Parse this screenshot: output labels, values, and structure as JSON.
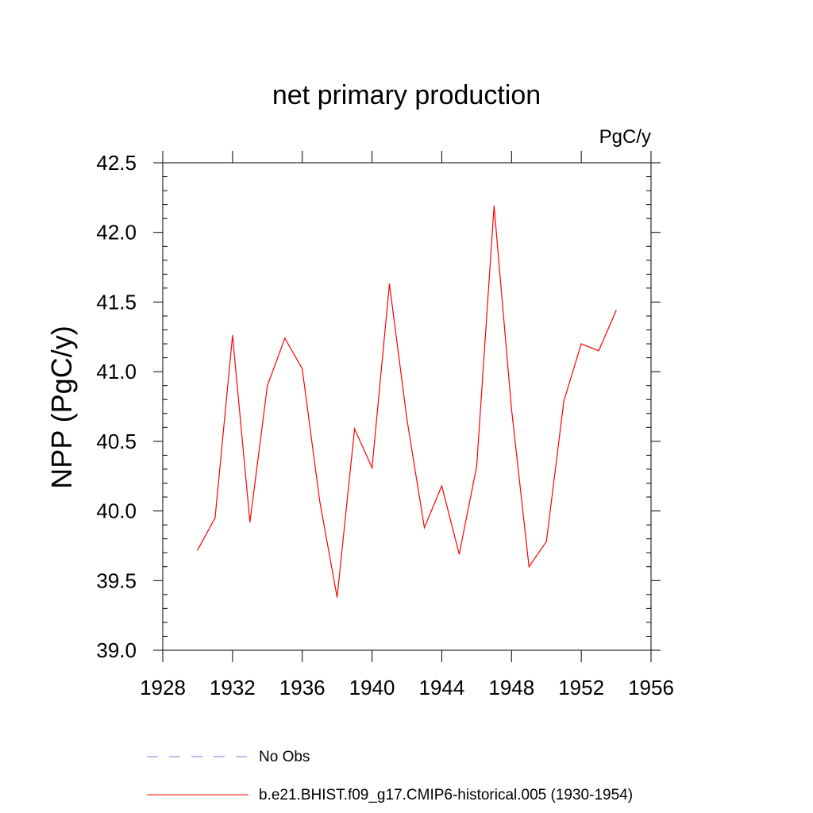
{
  "chart_data": {
    "type": "line",
    "title": "net primary production",
    "units_label": "PgC/y",
    "ylabel": "NPP  (PgC/y)",
    "xlabel": "",
    "xlim": [
      1928,
      1956
    ],
    "ylim": [
      39.0,
      42.5
    ],
    "x_ticks": [
      1928,
      1932,
      1936,
      1940,
      1944,
      1948,
      1952,
      1956
    ],
    "x_tick_labels": [
      "1928",
      "1932",
      "1936",
      "1940",
      "1944",
      "1948",
      "1952",
      "1956"
    ],
    "y_ticks": [
      39.0,
      39.5,
      40.0,
      40.5,
      41.0,
      41.5,
      42.0,
      42.5
    ],
    "y_tick_labels": [
      "39.0",
      "39.5",
      "40.0",
      "40.5",
      "41.0",
      "41.5",
      "42.0",
      "42.5"
    ],
    "grid": false,
    "legend_placement": "bottom",
    "series": [
      {
        "name": "b.e21.BHIST.f09_g17.CMIP6-historical.005 (1930-1954)",
        "color": "#ff0000",
        "style": "solid",
        "x": [
          1930,
          1931,
          1932,
          1933,
          1934,
          1935,
          1936,
          1937,
          1938,
          1939,
          1940,
          1941,
          1942,
          1943,
          1944,
          1945,
          1946,
          1947,
          1948,
          1949,
          1950,
          1951,
          1952,
          1953,
          1954
        ],
        "y": [
          39.72,
          39.95,
          41.26,
          39.92,
          40.9,
          41.24,
          41.02,
          40.07,
          39.38,
          40.59,
          40.31,
          41.63,
          40.66,
          39.88,
          40.18,
          39.69,
          40.32,
          42.19,
          40.73,
          39.6,
          39.78,
          40.79,
          41.2,
          41.15,
          41.44
        ]
      }
    ],
    "legend": [
      {
        "label": "No Obs",
        "color": "#7b7bd6",
        "style": "dashed"
      },
      {
        "label": "b.e21.BHIST.f09_g17.CMIP6-historical.005 (1930-1954)",
        "color": "#ff0000",
        "style": "solid"
      }
    ]
  }
}
